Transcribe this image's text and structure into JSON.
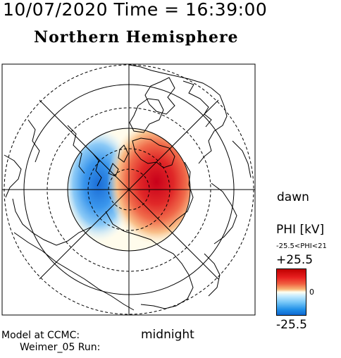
{
  "header": {
    "date_time": "10/07/2020 Time = 16:39:00",
    "hemisphere": "Northern Hemisphere"
  },
  "map_labels": {
    "dawn": "dawn",
    "midnight": "midnight"
  },
  "credits": {
    "line1": "Model at CCMC:",
    "line2": "Weimer_05 Run:"
  },
  "legend": {
    "title": "PHI [kV]",
    "range": "-25.5<PHI<21",
    "max": "+25.5",
    "zero": "0",
    "min": "-25.5",
    "colors": {
      "max": "#c00000",
      "zero": "#fffff0",
      "min": "#1068d0"
    }
  }
}
